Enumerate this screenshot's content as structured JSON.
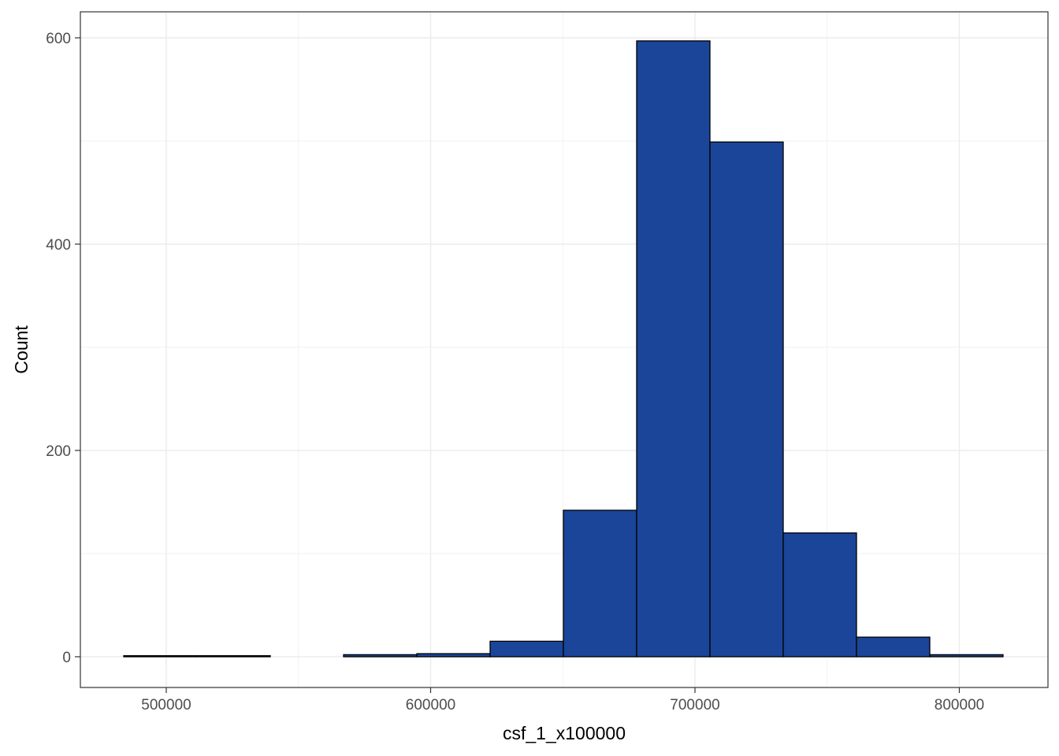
{
  "chart_data": {
    "type": "histogram",
    "x_label": "csf_1_x100000",
    "y_label": "Count",
    "bins": [
      483905,
      511625,
      539345,
      567065,
      594785,
      622505,
      650225,
      677945,
      705665,
      733385,
      761105,
      788825,
      816545
    ],
    "values": [
      1,
      1,
      0,
      2,
      3,
      15,
      142,
      597,
      499,
      120,
      19,
      2
    ],
    "color": "#1a4599",
    "edge_color": "#000000",
    "xlim": [
      467511,
      833532
    ],
    "ylim": [
      -29.8,
      625.2
    ],
    "xticks": [
      500000,
      600000,
      700000,
      800000
    ],
    "yticks": [
      0,
      200,
      400,
      600
    ],
    "grid": true
  }
}
